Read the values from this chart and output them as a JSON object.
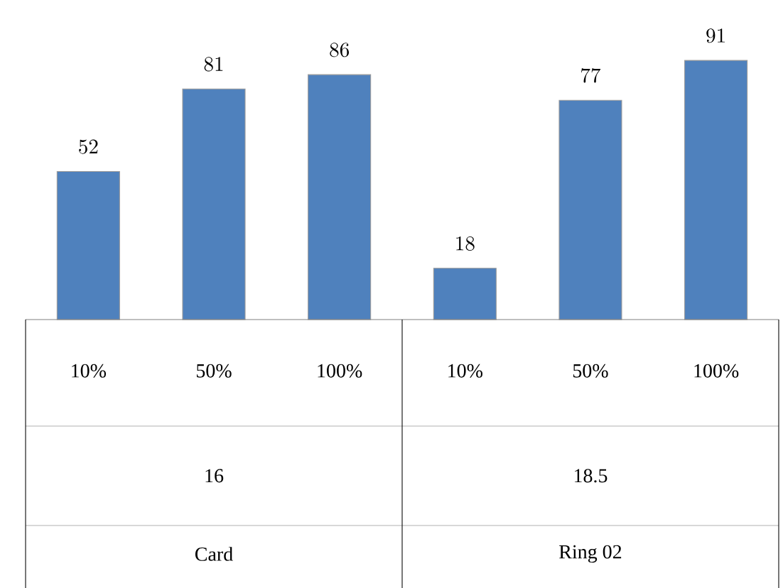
{
  "chart_data": {
    "type": "bar",
    "categories": [
      "10%",
      "50%",
      "100%",
      "10%",
      "50%",
      "100%"
    ],
    "values": [
      52,
      81,
      86,
      18,
      77,
      91
    ],
    "color": "#4f81bd",
    "data_labels": true,
    "annotations": [
      "16",
      "18.5",
      "Card",
      "Ring 02"
    ]
  }
}
